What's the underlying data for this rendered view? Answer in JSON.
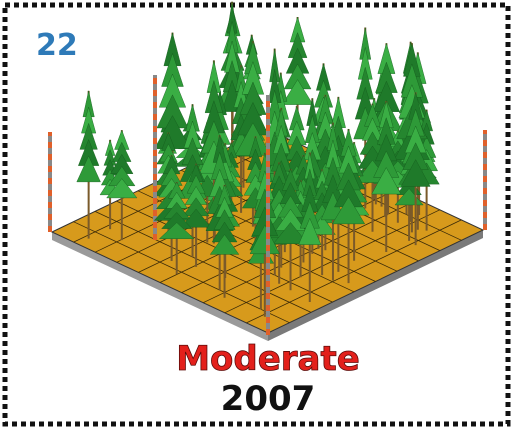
{
  "plot_number": "22",
  "condition": "Moderate",
  "year": "2007"
}
